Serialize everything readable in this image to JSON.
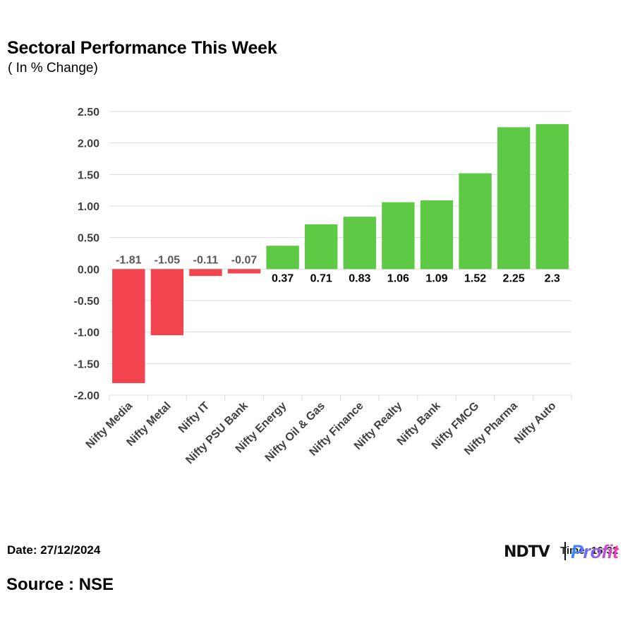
{
  "header": {
    "title": "Sectoral Performance This Week",
    "subtitle": "( In % Change)"
  },
  "footer": {
    "date": "Date: 27/12/2024",
    "source": "Source : NSE",
    "brand_primary": "NDTV",
    "brand_secondary": "Profit",
    "time_overlay": "Time: 16:32"
  },
  "colors": {
    "positive": "#5dc945",
    "negative": "#f2444f",
    "grid": "#dcdcdc",
    "axis_text": "#404040",
    "negative_label": "#595959",
    "positive_label": "#000000"
  },
  "chart_data": {
    "type": "bar",
    "title": "Sectoral Performance This Week",
    "subtitle": "( In % Change)",
    "xlabel": "",
    "ylabel": "",
    "ylim": [
      -2.0,
      2.5
    ],
    "yticks": [
      2.5,
      2.0,
      1.5,
      1.0,
      0.5,
      0.0,
      -0.5,
      -1.0,
      -1.5,
      -2.0
    ],
    "ytick_labels": [
      "2.50",
      "2.00",
      "1.50",
      "1.00",
      "0.50",
      "0.00",
      "-0.50",
      "-1.00",
      "-1.50",
      "-2.00"
    ],
    "grid": true,
    "categories": [
      "Nifty Media",
      "Nifty Metal",
      "Nifty IT",
      "Nifty PSU Bank",
      "Nifty Energy",
      "Nifty Oil & Gas",
      "Nifty Finance",
      "Nifty Realty",
      "Nifty Bank",
      "Nifty FMCG",
      "Nifty Pharma",
      "Nifty Auto"
    ],
    "values": [
      -1.81,
      -1.05,
      -0.11,
      -0.07,
      0.37,
      0.71,
      0.83,
      1.06,
      1.09,
      1.52,
      2.25,
      2.3
    ],
    "value_labels": [
      "-1.81",
      "-1.05",
      "-0.11",
      "-0.07",
      "0.37",
      "0.71",
      "0.83",
      "1.06",
      "1.09",
      "1.52",
      "2.25",
      "2.3"
    ]
  }
}
